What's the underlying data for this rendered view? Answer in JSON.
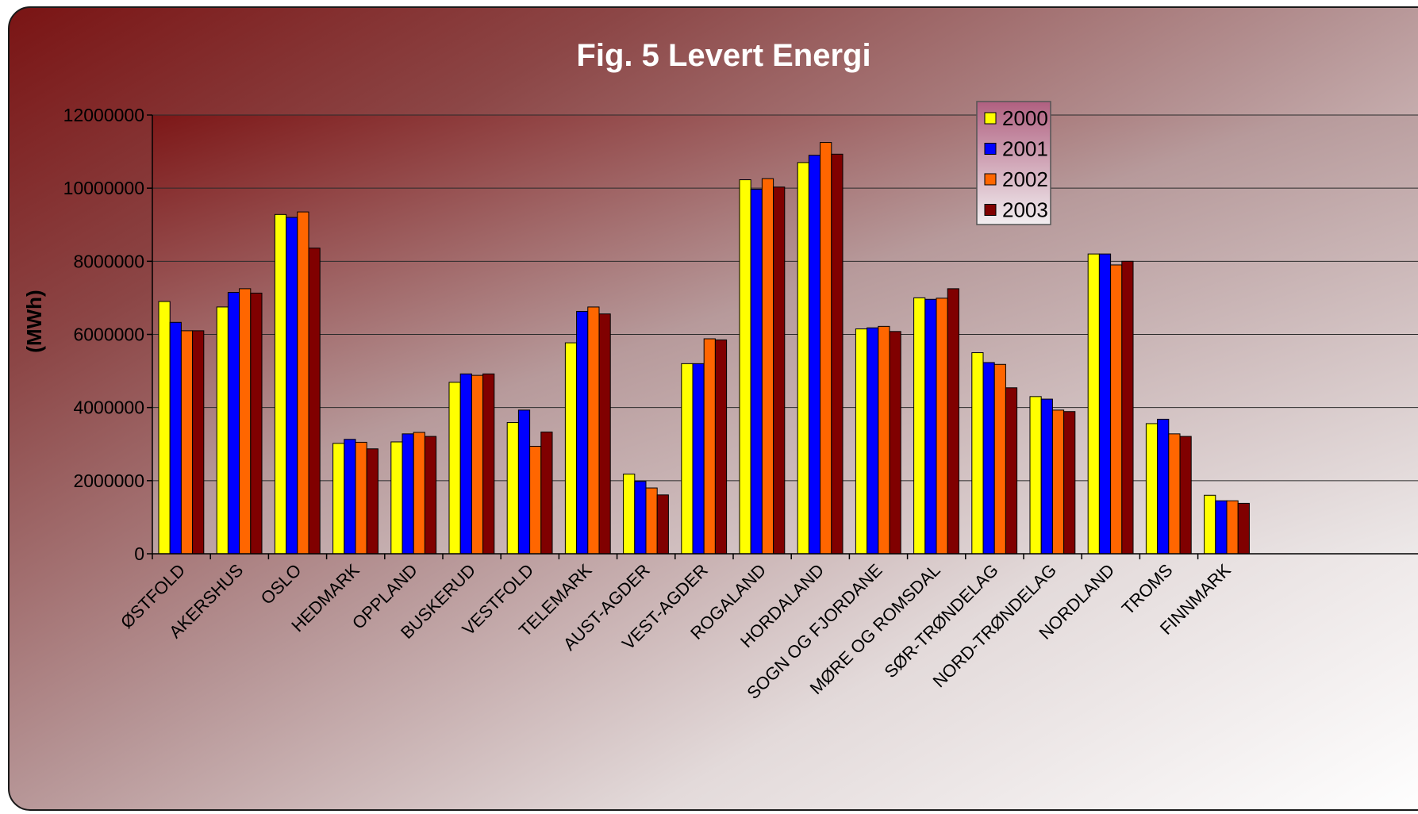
{
  "chart_data": {
    "type": "bar",
    "title": "Fig. 5 Levert Energi",
    "xlabel": "",
    "ylabel": "(MWh)",
    "ylim": [
      0,
      12000000
    ],
    "yticks": [
      "0",
      "2000000",
      "4000000",
      "6000000",
      "8000000",
      "10000000",
      "12000000"
    ],
    "grid": true,
    "legend_position": "top-right",
    "categories": [
      "ØSTFOLD",
      "AKERSHUS",
      "OSLO",
      "HEDMARK",
      "OPPLAND",
      "BUSKERUD",
      "VESTFOLD",
      "TELEMARK",
      "AUST-AGDER",
      "VEST-AGDER",
      "ROGALAND",
      "HORDALAND",
      "SOGN OG FJORDANE",
      "MØRE OG ROMSDAL",
      "SØR-TRØNDELAG",
      "NORD-TRØNDELAG",
      "NORDLAND",
      "TROMS",
      "FINNMARK"
    ],
    "series": [
      {
        "name": "2000",
        "color": "#ffff00",
        "values": [
          6900000,
          6750000,
          9280000,
          3020000,
          3060000,
          4690000,
          3590000,
          5770000,
          2180000,
          5200000,
          10230000,
          10700000,
          6150000,
          7000000,
          5500000,
          4300000,
          8200000,
          3560000,
          1600000
        ]
      },
      {
        "name": "2001",
        "color": "#0000ff",
        "values": [
          6330000,
          7150000,
          9200000,
          3130000,
          3280000,
          4920000,
          3930000,
          6630000,
          1980000,
          5200000,
          9970000,
          10900000,
          6180000,
          6960000,
          5230000,
          4230000,
          8200000,
          3680000,
          1450000
        ]
      },
      {
        "name": "2002",
        "color": "#ff6600",
        "values": [
          6100000,
          7250000,
          9350000,
          3050000,
          3320000,
          4880000,
          2940000,
          6750000,
          1800000,
          5880000,
          10260000,
          11250000,
          6220000,
          6990000,
          5180000,
          3930000,
          7900000,
          3280000,
          1450000
        ]
      },
      {
        "name": "2003",
        "color": "#800000",
        "values": [
          6100000,
          7130000,
          8360000,
          2870000,
          3210000,
          4920000,
          3330000,
          6560000,
          1610000,
          5850000,
          10030000,
          10930000,
          6080000,
          7250000,
          4540000,
          3890000,
          8000000,
          3210000,
          1380000
        ]
      }
    ]
  }
}
